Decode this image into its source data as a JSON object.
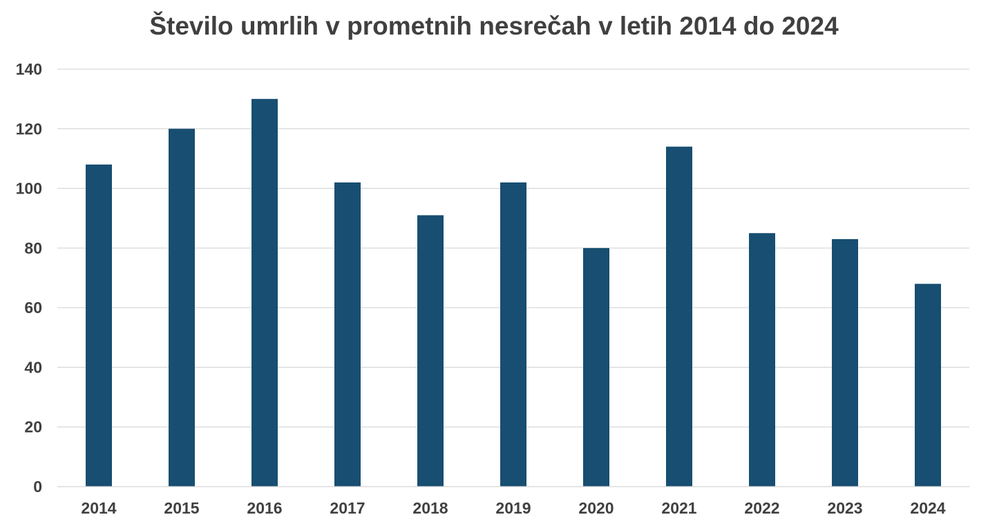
{
  "chart_data": {
    "type": "bar",
    "title": "Število umrlih v prometnih nesrečah v letih 2014 do 2024",
    "xlabel": "",
    "ylabel": "",
    "categories": [
      "2014",
      "2015",
      "2016",
      "2017",
      "2018",
      "2019",
      "2020",
      "2021",
      "2022",
      "2023",
      "2024"
    ],
    "series": [
      {
        "values": [
          108,
          120,
          130,
          102,
          91,
          102,
          80,
          114,
          85,
          83,
          68
        ]
      }
    ],
    "ylim": [
      0,
      140
    ],
    "yticks": [
      0,
      20,
      40,
      60,
      80,
      100,
      120,
      140
    ],
    "grid": true,
    "legend": "none",
    "colors": {
      "bar": "#174E71",
      "grid": "#D9D9D9",
      "text": "#404040"
    }
  }
}
